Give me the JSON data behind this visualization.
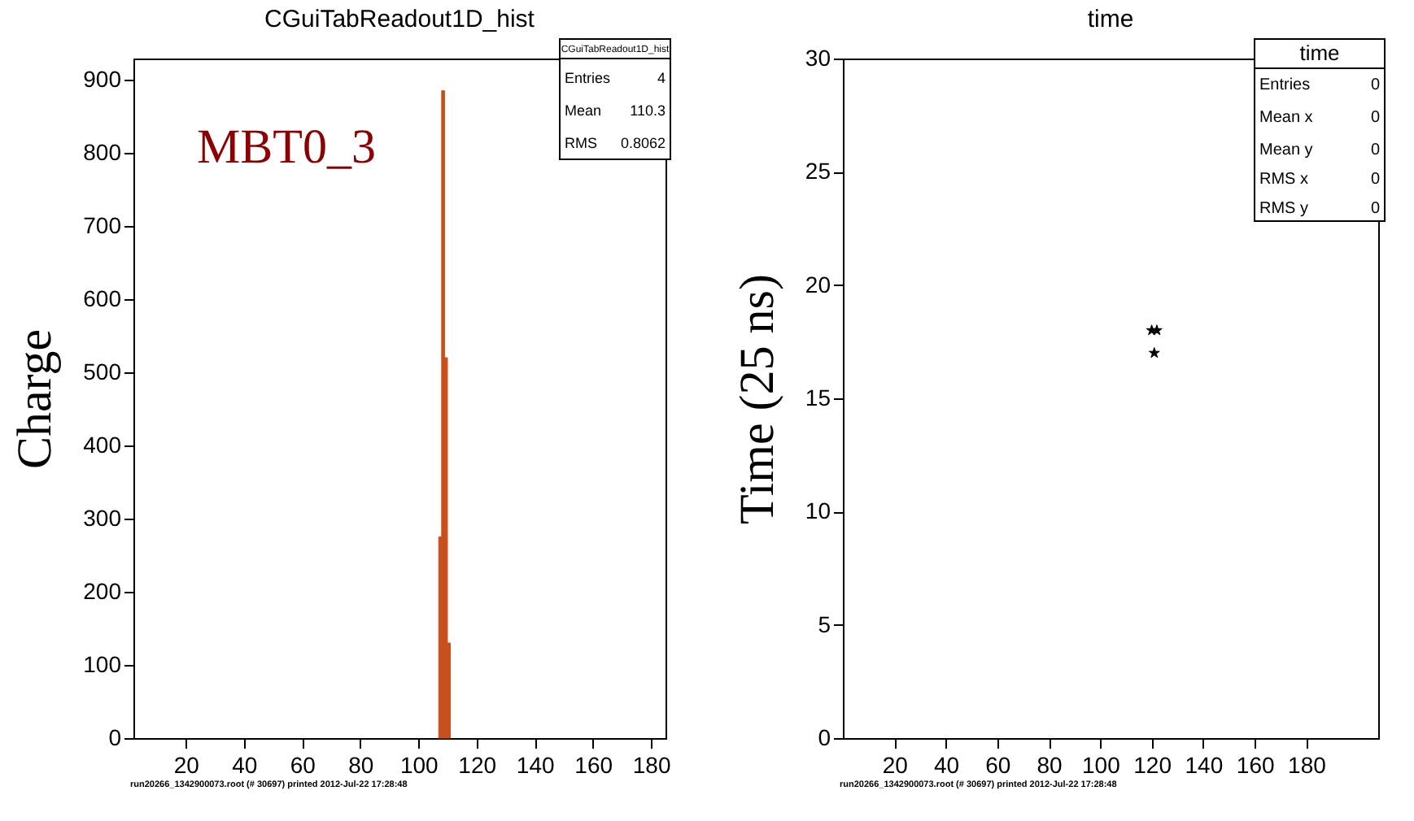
{
  "chart_data": [
    {
      "type": "histogram",
      "title": "CGuiTabReadout1D_hist",
      "ylabel": "Charge",
      "bins": [
        107,
        108,
        109,
        110,
        111
      ],
      "values": [
        275,
        885,
        520,
        130
      ],
      "color": "#c8501e",
      "xlim": [
        2,
        185
      ],
      "xticks": [
        20,
        40,
        60,
        80,
        100,
        120,
        140,
        160,
        180
      ],
      "ylim": [
        0,
        929
      ],
      "yticks": [
        0,
        100,
        200,
        300,
        400,
        500,
        600,
        700,
        800,
        900
      ],
      "grid": false,
      "annotations": [
        "MBT0_3",
        "CGuiTabReadout1D_hist",
        "Entries 4",
        "Mean 110.3",
        "RMS 0.8062",
        "run20266_1342900073.root (# 30697) printed 2012-Jul-22 17:28:48"
      ]
    },
    {
      "type": "scatter",
      "title": "time",
      "ylabel": "Time (25 ns)",
      "x": [
        120,
        122,
        121
      ],
      "values": [
        18,
        18,
        17
      ],
      "color": "#000000",
      "marker": "star",
      "xlim": [
        0,
        208
      ],
      "xticks": [
        20,
        40,
        60,
        80,
        100,
        120,
        140,
        160,
        180
      ],
      "ylim": [
        0,
        30
      ],
      "yticks": [
        0,
        5,
        10,
        15,
        20,
        25,
        30
      ],
      "grid": false,
      "annotations": [
        "time",
        "Entries 0",
        "Mean x 0",
        "Mean y 0",
        "RMS x 0",
        "RMS y 0",
        "run20266_1342900073.root (# 30697) printed 2012-Jul-22 17:28:48"
      ]
    }
  ]
}
